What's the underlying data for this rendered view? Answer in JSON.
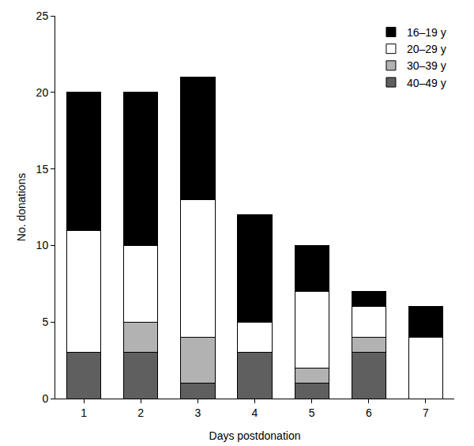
{
  "chart_data": {
    "type": "bar",
    "stacked": true,
    "categories": [
      "1",
      "2",
      "3",
      "4",
      "5",
      "6",
      "7"
    ],
    "x_label": "Days postdonation",
    "y_label": "No. donations",
    "ylim": [
      0,
      25
    ],
    "yticks": [
      0,
      5,
      10,
      15,
      20,
      25
    ],
    "grid": false,
    "legend": "top right",
    "series": [
      {
        "name": "40–49 y",
        "color": "#5f5f5f",
        "values": [
          3,
          3,
          1,
          3,
          1,
          3,
          0
        ]
      },
      {
        "name": "30–39 y",
        "color": "#b2b2b2",
        "values": [
          0,
          2,
          3,
          0,
          1,
          1,
          0
        ]
      },
      {
        "name": "20–29 y",
        "color": "#ffffff",
        "values": [
          8,
          5,
          9,
          2,
          5,
          2,
          4
        ]
      },
      {
        "name": "16–19 y",
        "color": "#000000",
        "values": [
          9,
          10,
          8,
          7,
          3,
          1,
          2
        ]
      }
    ]
  }
}
